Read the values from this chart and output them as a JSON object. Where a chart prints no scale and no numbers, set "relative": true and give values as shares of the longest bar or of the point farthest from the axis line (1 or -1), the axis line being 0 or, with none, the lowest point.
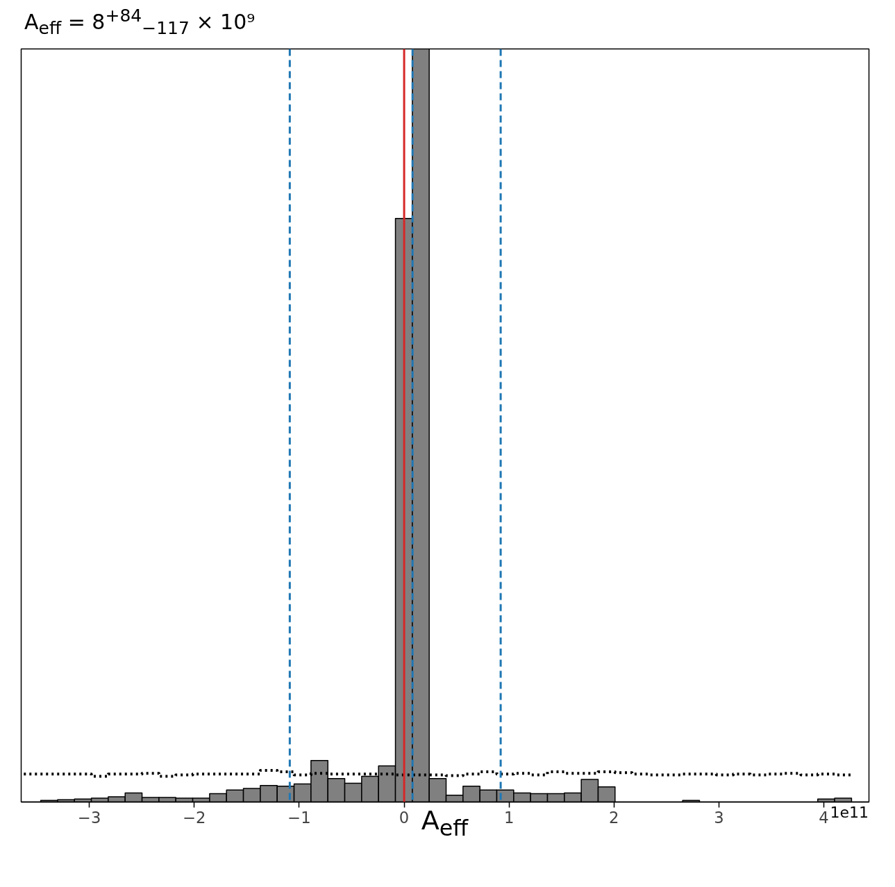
{
  "chart_data": {
    "type": "histogram",
    "relative": true,
    "title": "A$_{eff}$ = 8$^{+84}$$_{−117}$ × 10⁹",
    "xlabel": "A$_{eff}$",
    "annotations": [
      "1e11"
    ],
    "bins": [
      -3.625,
      -3.464,
      -3.303,
      -3.142,
      -2.981,
      -2.82,
      -2.659,
      -2.498,
      -2.337,
      -2.176,
      -2.015,
      -1.854,
      -1.693,
      -1.532,
      -1.371,
      -1.21,
      -1.049,
      -0.888,
      -0.727,
      -0.566,
      -0.405,
      -0.244,
      -0.083,
      0.078,
      0.239,
      0.4,
      0.561,
      0.722,
      0.883,
      1.044,
      1.205,
      1.366,
      1.527,
      1.688,
      1.849,
      2.01,
      2.171,
      2.332,
      2.493,
      2.654,
      2.815,
      2.976,
      3.137,
      3.298,
      3.459,
      3.62,
      3.781,
      3.942,
      4.103,
      4.264
    ],
    "series": [
      {
        "color": "#808080",
        "values": [
          0,
          0.002,
          0.003,
          0.004,
          0.005,
          0.007,
          0.012,
          0.006,
          0.006,
          0.005,
          0.005,
          0.011,
          0.016,
          0.018,
          0.022,
          0.021,
          0.024,
          0.055,
          0.031,
          0.025,
          0.034,
          0.048,
          0.775,
          1.0,
          0.031,
          0.009,
          0.021,
          0.016,
          0.016,
          0.012,
          0.011,
          0.011,
          0.012,
          0.03,
          0.02,
          0,
          0,
          0,
          0,
          0.002,
          0,
          0,
          0,
          0,
          0,
          0,
          0,
          0.004,
          0.005
        ]
      },
      {
        "type": "step",
        "color": "#000000",
        "line_style": "dotted",
        "x": [
          -3.625,
          -3.464,
          -3.303,
          -3.142,
          -2.981,
          -2.82,
          -2.659,
          -2.498,
          -2.337,
          -2.176,
          -2.015,
          -1.854,
          -1.693,
          -1.532,
          -1.371,
          -1.21,
          -1.049,
          -0.888,
          -0.727,
          -0.566,
          -0.405,
          -0.244,
          -0.083,
          0.078,
          0.239,
          0.4,
          0.561,
          0.722,
          0.883,
          1.044,
          1.205,
          1.366,
          1.527,
          1.688,
          1.849,
          2.01,
          2.171,
          2.332,
          2.493,
          2.654,
          2.815,
          2.976,
          3.137,
          3.298,
          3.459,
          3.62,
          3.781,
          3.942,
          4.103,
          4.264
        ],
        "values": [
          0.037,
          0.037,
          0.037,
          0.037,
          0.034,
          0.037,
          0.037,
          0.038,
          0.034,
          0.036,
          0.037,
          0.037,
          0.037,
          0.037,
          0.042,
          0.04,
          0.036,
          0.038,
          0.037,
          0.037,
          0.037,
          0.037,
          0.036,
          0.036,
          0.036,
          0.035,
          0.037,
          0.04,
          0.037,
          0.038,
          0.036,
          0.04,
          0.038,
          0.038,
          0.04,
          0.039,
          0.037,
          0.036,
          0.036,
          0.037,
          0.037,
          0.036,
          0.037,
          0.036,
          0.037,
          0.038,
          0.036,
          0.037,
          0.036,
          0.036
        ]
      }
    ],
    "xlim": [
      -3.65,
      4.43
    ],
    "xticks": [
      {
        "value": -3,
        "label": "−3"
      },
      {
        "value": -2,
        "label": "−2"
      },
      {
        "value": -1,
        "label": "−1"
      },
      0,
      1,
      2,
      3,
      4
    ],
    "ref_lines": [
      {
        "axis": "x",
        "value": 0,
        "color": "#d62728",
        "line_style": "solid"
      },
      {
        "axis": "x",
        "value": -1.09,
        "color": "#1f77b4",
        "line_style": "dashed"
      },
      {
        "axis": "x",
        "value": 0.08,
        "color": "#1f77b4",
        "line_style": "dashed"
      },
      {
        "axis": "x",
        "value": 0.92,
        "color": "#1f77b4",
        "line_style": "dashed"
      }
    ],
    "tick_labels": "x",
    "grid": false
  }
}
